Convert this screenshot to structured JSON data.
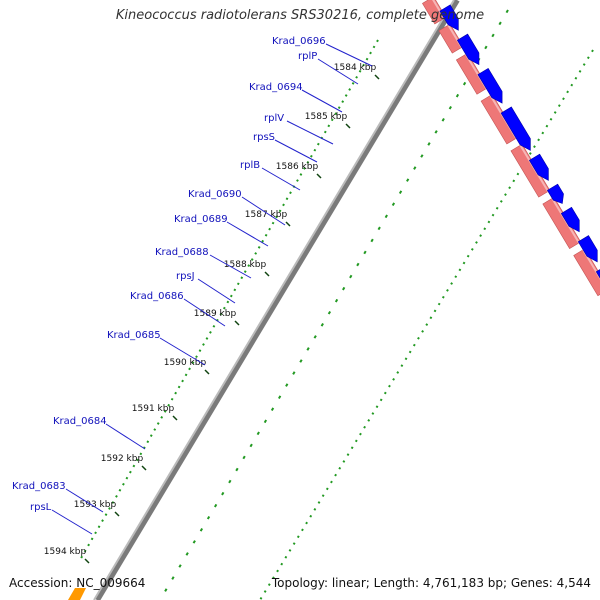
{
  "title": "Kineococcus radiotolerans SRS30216, complete genome",
  "accession": "Accession: NC_009664",
  "summary": "Topology: linear; Length: 4,761,183 bp; Genes: 4,544",
  "colors": {
    "gene_label": "#1111bb",
    "leader": "#2222cc",
    "forward_strand_feature": "#0000ff",
    "gene_band": "#ee7777",
    "gc_dots": "#229922",
    "backbone": "#7a7a7a",
    "orange_feature": "#ff9900"
  },
  "ruler_ticks": [
    "1584 kbp",
    "1585 kbp",
    "1586 kbp",
    "1587 kbp",
    "1588 kbp",
    "1589 kbp",
    "1590 kbp",
    "1591 kbp",
    "1592 kbp",
    "1593 kbp",
    "1594 kbp"
  ],
  "genes": [
    "Krad_0696",
    "rplP",
    "Krad_0694",
    "rplV",
    "rpsS",
    "rplB",
    "Krad_0690",
    "Krad_0689",
    "Krad_0688",
    "rpsJ",
    "Krad_0686",
    "Krad_0685",
    "Krad_0684",
    "Krad_0683",
    "rpsL"
  ]
}
